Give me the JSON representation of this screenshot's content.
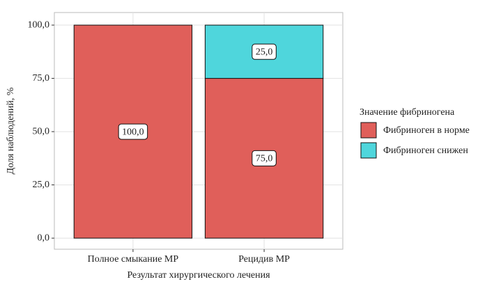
{
  "chart_data": {
    "type": "stacked_bar",
    "x_label": "Результат хирургического лечения",
    "y_label": "Доля наблюдений, %",
    "categories": [
      "Полное смыкание МР",
      "Рецидив МР"
    ],
    "legend_title": "Значение фибриногена",
    "legend_position": "right",
    "grid": true,
    "series": [
      {
        "name": "Фибриноген в норме",
        "color": "#e05f5a",
        "values": [
          100,
          75
        ],
        "value_labels": [
          "100,0",
          "75,0"
        ]
      },
      {
        "name": "Фибриноген снижен",
        "color": "#4fd6dc",
        "values": [
          0,
          25
        ],
        "value_labels": [
          null,
          "25,0"
        ]
      }
    ],
    "ylim": [
      -5.2,
      105.9
    ],
    "yticks": [
      {
        "value": 0,
        "label": "0,0"
      },
      {
        "value": 25,
        "label": "25,0"
      },
      {
        "value": 50,
        "label": "50,0"
      },
      {
        "value": 75,
        "label": "75,0"
      },
      {
        "value": 100,
        "label": "100,0"
      }
    ]
  }
}
